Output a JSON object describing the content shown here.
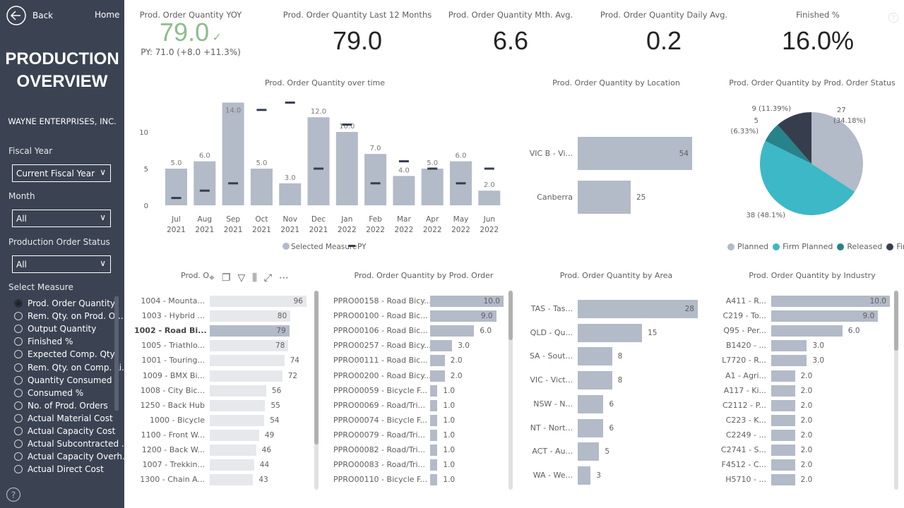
{
  "sidebar": {
    "back_label": "Back",
    "home_label": "Home",
    "title_line1": "PRODUCTION",
    "title_line2": "OVERVIEW",
    "company": "WAYNE ENTERPRISES, INC.",
    "fiscal_year": {
      "label": "Fiscal Year",
      "value": "Current Fiscal Year"
    },
    "month": {
      "label": "Month",
      "value": "All"
    },
    "status": {
      "label": "Production Order Status",
      "value": "All"
    },
    "measure_label": "Select Measure",
    "measures": [
      {
        "label": "Prod. Order Quantity",
        "selected": true
      },
      {
        "label": "Rem. Qty. on Prod. Or...",
        "selected": false
      },
      {
        "label": "Output Quantity",
        "selected": false
      },
      {
        "label": "Finished %",
        "selected": false
      },
      {
        "label": "Expected Comp. Qty.",
        "selected": false
      },
      {
        "label": "Rem. Qty. on Comp. Li...",
        "selected": false
      },
      {
        "label": "Quantity Consumed",
        "selected": false
      },
      {
        "label": "Consumed %",
        "selected": false
      },
      {
        "label": "No. of Prod. Orders",
        "selected": false
      },
      {
        "label": "Actual Material Cost",
        "selected": false
      },
      {
        "label": "Actual Capacity Cost",
        "selected": false
      },
      {
        "label": "Actual Subcontracted ...",
        "selected": false
      },
      {
        "label": "Actual Capacity Overh...",
        "selected": false
      },
      {
        "label": "Actual Direct Cost",
        "selected": false
      }
    ]
  },
  "kpis": [
    {
      "title": "Prod. Order Quantity YOY",
      "value": "79.0",
      "sub": "PY: 71.0 (+8.0 +11.3%)",
      "color": "#8dbd8d"
    },
    {
      "title": "Prod. Order Quantity Last 12 Months",
      "value": "79.0"
    },
    {
      "title": "Prod. Order Quantity Mth. Avg.",
      "value": "6.6"
    },
    {
      "title": "Prod. Order Quantity Daily Avg.",
      "value": "0.2"
    },
    {
      "title": "Finished %",
      "value": "16.0%"
    }
  ],
  "visual_header": {
    "truncated_title": "Prod. O"
  },
  "chart_data": [
    {
      "type": "bar",
      "title": "Prod. Order Quantity over time",
      "categories": [
        "Jul 2021",
        "Aug 2021",
        "Sep 2021",
        "Oct 2021",
        "Nov 2021",
        "Dec 2021",
        "Jan 2022",
        "Feb 2022",
        "Mar 2022",
        "Apr 2022",
        "May 2022",
        "Jun 2022"
      ],
      "series": [
        {
          "name": "Selected Measure",
          "values": [
            5,
            6,
            14,
            5,
            3,
            12,
            10,
            7,
            4,
            5,
            6,
            2
          ],
          "labels": [
            "5.0",
            "6.0",
            "14.0",
            "5.0",
            "3.0",
            "12.0",
            "10.0",
            "7.0",
            "4.0",
            "5.0",
            "6.0",
            "2.0"
          ]
        },
        {
          "name": "PY",
          "values": [
            1,
            2,
            3,
            13,
            14,
            5,
            11,
            3,
            6,
            5,
            3,
            5
          ]
        }
      ],
      "yticks": [
        "0",
        "5",
        "10"
      ],
      "ylim": [
        0,
        14
      ],
      "legend": "bottom"
    },
    {
      "type": "bar",
      "title": "Prod. Order Quantity by Location",
      "categories": [
        "VIC B - Vi...",
        "Canberra"
      ],
      "values": [
        54,
        25
      ],
      "labels": [
        "54",
        "25"
      ]
    },
    {
      "type": "pie",
      "title": "Prod. Order Quantity by Prod. Order Status",
      "categories": [
        "Planned",
        "Firm Planned",
        "Released",
        "Finished"
      ],
      "values": [
        27,
        38,
        5,
        9
      ],
      "labels": [
        "27 (34.18%)",
        "38 (48.1%)",
        "5 (6.33%)",
        "9 (11.39%)"
      ],
      "colors": [
        "#b3bac8",
        "#3db8c6",
        "#27838b",
        "#363e4e"
      ],
      "legend": "bottom"
    },
    {
      "type": "bar",
      "title": "Prod. Order Quantity by Item",
      "categories": [
        "1004 - Mounta...",
        "1003 - Hybrid ...",
        "1002 - Road Bi...",
        "1005 - Triathlo...",
        "1001 - Touring...",
        "1009 - BMX Bi...",
        "1008 - City Bic...",
        "1250 - Back Hub",
        "1000 - Bicycle",
        "1100 - Front W...",
        "1200 - Back W...",
        "1007 - Trekkin...",
        "1300 - Chain A..."
      ],
      "values": [
        96,
        80,
        79,
        78,
        74,
        72,
        56,
        55,
        54,
        49,
        46,
        44,
        43
      ],
      "labels": [
        "96",
        "80",
        "79",
        "78",
        "74",
        "72",
        "56",
        "55",
        "54",
        "49",
        "46",
        "44",
        "43"
      ],
      "highlighted": "1002 - Road Bi..."
    },
    {
      "type": "bar",
      "title": "Prod. Order Quantity by Prod. Order",
      "categories": [
        "PPRO00158 - Road Bicy...",
        "PPRO00100 - Road Bic...",
        "PPRO00106 - Road Bic...",
        "PPRO00257 - Road Bicy...",
        "PPRO00111 - Road Bic...",
        "PPRO00200 - Road Bicy...",
        "PPRO00059 - Bicycle F...",
        "PPRO00069 - Road/Tri...",
        "PPRO00074 - Bicycle F...",
        "PPRO00079 - Road/Tri...",
        "PPRO00082 - Road/Tri...",
        "PPRO00083 - Road/Tri...",
        "PPRO00110 - Bicycle F..."
      ],
      "values": [
        10,
        9,
        6,
        3,
        2,
        2,
        1,
        1,
        1,
        1,
        1,
        1,
        1
      ],
      "labels": [
        "10.0",
        "9.0",
        "6.0",
        "3.0",
        "2.0",
        "2.0",
        "1.0",
        "1.0",
        "1.0",
        "1.0",
        "1.0",
        "1.0",
        "1.0"
      ]
    },
    {
      "type": "bar",
      "title": "Prod. Order Quantity by Area",
      "categories": [
        "TAS - Tas...",
        "QLD - Qu...",
        "SA - Sout...",
        "VIC - Vict...",
        "NSW - N...",
        "NT - Nort...",
        "ACT - Au...",
        "WA - We..."
      ],
      "values": [
        28,
        15,
        8,
        8,
        6,
        6,
        5,
        3
      ],
      "labels": [
        "28",
        "15",
        "8",
        "8",
        "6",
        "6",
        "5",
        "3"
      ]
    },
    {
      "type": "bar",
      "title": "Prod. Order Quantity by Industry",
      "categories": [
        "A411 - R...",
        "C219 - To...",
        "Q95 - Per...",
        "B1420 - ...",
        "L7720 - R...",
        "A1 - Agri...",
        "A117 - Ki...",
        "C2112 - P...",
        "C223 - K...",
        "C2249 - ...",
        "C2741 - S...",
        "F4512 - C...",
        "H5710 - ..."
      ],
      "values": [
        10,
        9,
        6,
        3,
        3,
        2,
        2,
        2,
        2,
        2,
        2,
        2,
        2
      ],
      "labels": [
        "10.0",
        "9.0",
        "6.0",
        "3.0",
        "3.0",
        "2.0",
        "2.0",
        "2.0",
        "2.0",
        "2.0",
        "2.0",
        "2.0",
        "2.0"
      ]
    }
  ]
}
